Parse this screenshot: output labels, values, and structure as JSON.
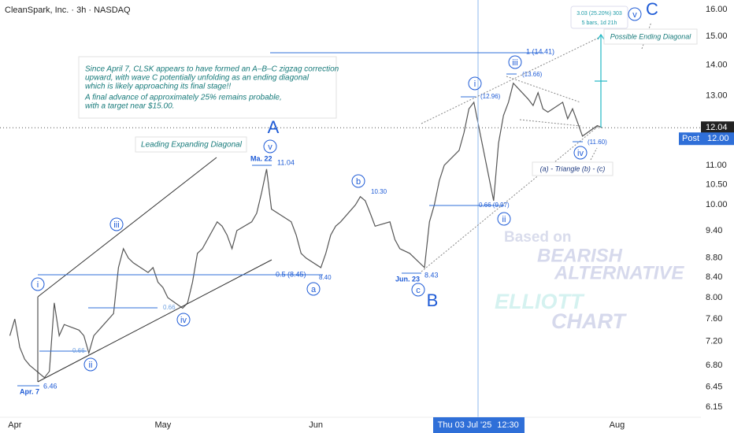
{
  "header": {
    "title": "CleanSpark, Inc. · 3h · NASDAQ"
  },
  "chart_data": {
    "type": "line",
    "color": "#555555",
    "log_scale": true,
    "x": [
      "2025-03-31",
      "2025-04-01",
      "2025-04-02",
      "2025-04-03",
      "2025-04-04",
      "2025-04-07",
      "2025-04-08",
      "2025-04-09",
      "2025-04-10",
      "2025-04-11",
      "2025-04-14",
      "2025-04-15",
      "2025-04-16",
      "2025-04-17",
      "2025-04-21",
      "2025-04-22",
      "2025-04-23",
      "2025-04-24",
      "2025-04-25",
      "2025-04-28",
      "2025-04-29",
      "2025-04-30",
      "2025-05-01",
      "2025-05-02",
      "2025-05-05",
      "2025-05-06",
      "2025-05-07",
      "2025-05-08",
      "2025-05-09",
      "2025-05-12",
      "2025-05-13",
      "2025-05-14",
      "2025-05-15",
      "2025-05-16",
      "2025-05-19",
      "2025-05-20",
      "2025-05-21",
      "2025-05-22",
      "2025-05-23",
      "2025-05-27",
      "2025-05-28",
      "2025-05-29",
      "2025-05-30",
      "2025-06-02",
      "2025-06-03",
      "2025-06-04",
      "2025-06-05",
      "2025-06-06",
      "2025-06-09",
      "2025-06-10",
      "2025-06-11",
      "2025-06-12",
      "2025-06-13",
      "2025-06-16",
      "2025-06-17",
      "2025-06-18",
      "2025-06-20",
      "2025-06-23",
      "2025-06-24",
      "2025-06-25",
      "2025-06-26",
      "2025-06-27",
      "2025-06-30",
      "2025-07-01",
      "2025-07-02",
      "2025-07-03",
      "2025-07-07",
      "2025-07-08",
      "2025-07-09",
      "2025-07-10",
      "2025-07-11",
      "2025-07-14",
      "2025-07-15",
      "2025-07-16",
      "2025-07-17",
      "2025-07-18",
      "2025-07-21",
      "2025-07-22",
      "2025-07-23",
      "2025-07-24",
      "2025-07-25",
      "2025-07-28",
      "2025-07-29"
    ],
    "values": [
      7.3,
      7.6,
      7.1,
      6.9,
      6.8,
      6.6,
      6.7,
      7.9,
      7.3,
      7.5,
      7.4,
      7.3,
      7.0,
      7.3,
      7.7,
      8.6,
      9.0,
      8.8,
      8.7,
      8.5,
      8.6,
      8.3,
      8.2,
      8.0,
      7.8,
      7.9,
      8.3,
      8.9,
      9.0,
      9.6,
      9.5,
      9.3,
      9.0,
      9.4,
      9.6,
      9.8,
      10.3,
      10.9,
      9.9,
      9.6,
      9.3,
      8.9,
      8.8,
      8.6,
      8.9,
      9.3,
      9.5,
      9.6,
      10.0,
      10.2,
      10.1,
      9.8,
      9.5,
      9.6,
      9.2,
      9.0,
      8.9,
      8.6,
      9.6,
      10.0,
      10.6,
      11.0,
      11.4,
      11.9,
      12.6,
      12.8,
      10.1,
      11.6,
      12.4,
      12.8,
      13.4,
      12.9,
      12.7,
      13.1,
      12.6,
      12.5,
      12.8,
      12.3,
      12.6,
      12.2,
      11.8,
      12.1,
      12.04
    ],
    "xlim": [
      "2025-03-29",
      "2025-08-18"
    ],
    "xticks": [
      {
        "value": "2025-04-01",
        "label": "Apr"
      },
      {
        "value": "2025-05-01",
        "label": "May"
      },
      {
        "value": "2025-06-01",
        "label": "Jun"
      },
      {
        "value": "2025-08-01",
        "label": "Aug"
      }
    ],
    "ylim": [
      6.0,
      16.37
    ],
    "yticks": [
      {
        "value": 16,
        "label": "16.00"
      },
      {
        "value": 15,
        "label": "15.00"
      },
      {
        "value": 14,
        "label": "14.00"
      },
      {
        "value": 13,
        "label": "13.00"
      },
      {
        "value": 11,
        "label": "11.00"
      },
      {
        "value": 10.5,
        "label": "10.50"
      },
      {
        "value": 10,
        "label": "10.00"
      },
      {
        "value": 9.4,
        "label": "9.40"
      },
      {
        "value": 8.8,
        "label": "8.80"
      },
      {
        "value": 8.4,
        "label": "8.40"
      },
      {
        "value": 8,
        "label": "8.00"
      },
      {
        "value": 7.6,
        "label": "7.60"
      },
      {
        "value": 7.2,
        "label": "7.20"
      },
      {
        "value": 6.8,
        "label": "6.80"
      },
      6.45,
      6.15
    ],
    "last_price": 12.04,
    "post": {
      "label": "Post",
      "price": {
        "value": 12,
        "label": "12.00"
      }
    },
    "crosshair": {
      "date": "Thu 03 Jul '25",
      "time": "12:30"
    }
  },
  "note": {
    "lines": [
      "Since April 7, CLSK appears to have formed an A–B–C zigzag correction",
      "upward, with wave C potentially unfolding as an ending diagonal",
      "which is likely approaching its final stage!!",
      "A final advance of approximately 25% remains probable,",
      "with a target near $15.00."
    ]
  },
  "annotations": {
    "waves": [
      "i",
      "ii",
      "iii",
      "iv",
      "v",
      "a",
      "b",
      "c",
      "i",
      "ii",
      "iii",
      "iv",
      "v"
    ],
    "majors": [
      "A",
      "B",
      "C"
    ],
    "levels": [
      "Apr. 7",
      "6.46",
      "Ma. 22",
      "11.04",
      "0.5 (8.45)",
      "8.40",
      "10.30",
      "Jun. 23",
      "8.43",
      "0.66 (9.97)",
      "(12.96)",
      "(13.66)",
      "(11.60)",
      "1 (14.41)",
      "0.66",
      "0.66"
    ],
    "leading": "Leading Expanding Diagonal",
    "ending": "Possible Ending Diagonal",
    "triangle": "(a) - Triangle (b) - (c)",
    "measure": [
      "3.03 (25.20%) 303",
      "5 bars, 1d 21h"
    ],
    "watermark": [
      "Based on",
      "BEARISH",
      "ALTERNATIVE",
      "ELLIOTT",
      "CHART"
    ]
  }
}
